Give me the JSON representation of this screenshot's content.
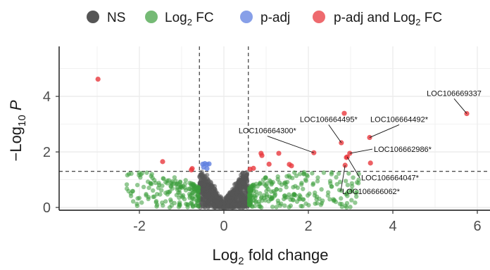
{
  "chart_data": {
    "type": "scatter",
    "title": "",
    "xlabel": "Log2 fold change",
    "ylabel": "-Log10 P",
    "xlim": [
      -3.9,
      6.3
    ],
    "ylim": [
      -0.1,
      5.8
    ],
    "x_ticks": [
      -2,
      0,
      2,
      4,
      6
    ],
    "y_ticks": [
      0,
      2,
      4
    ],
    "x_tick_labels": [
      "-2",
      "0",
      "2",
      "4",
      "6"
    ],
    "y_tick_labels": [
      "0",
      "2",
      "4"
    ],
    "grid": true,
    "legend_position": "top",
    "thresholds": {
      "log2fc": [
        -0.58,
        0.58
      ],
      "neg_log10_p": 1.3
    },
    "legend": [
      {
        "key": "NS",
        "label": "NS",
        "color": "#555555"
      },
      {
        "key": "FC",
        "label": "Log2 FC",
        "color": "#3a9c3a"
      },
      {
        "key": "P",
        "label": "p-adj",
        "color": "#5f7fe0"
      },
      {
        "key": "FCP",
        "label": "p-adj and Log2 FC",
        "color": "#e8383d"
      }
    ],
    "series": [
      {
        "name": "p-adj and Log2 FC",
        "color": "#e8383d",
        "points": [
          [
            -2.98,
            4.62
          ],
          [
            -1.45,
            1.65
          ],
          [
            -0.77,
            1.35
          ],
          [
            -0.75,
            1.4
          ],
          [
            0.62,
            1.38
          ],
          [
            0.7,
            1.41
          ],
          [
            0.88,
            1.95
          ],
          [
            0.9,
            1.87
          ],
          [
            1.07,
            1.56
          ],
          [
            1.3,
            1.95
          ],
          [
            1.55,
            1.55
          ],
          [
            1.6,
            1.5
          ],
          [
            2.13,
            1.97
          ],
          [
            2.78,
            2.33
          ],
          [
            2.85,
            3.39
          ],
          [
            2.87,
            1.52
          ],
          [
            2.9,
            1.8
          ],
          [
            2.92,
            1.82
          ],
          [
            2.98,
            1.95
          ],
          [
            3.47,
            1.6
          ],
          [
            3.45,
            2.52
          ],
          [
            5.75,
            3.38
          ]
        ]
      },
      {
        "name": "p-adj",
        "color": "#5f7fe0",
        "points": [
          [
            -0.5,
            1.56
          ],
          [
            -0.45,
            1.58
          ],
          [
            -0.4,
            1.55
          ],
          [
            -0.35,
            1.57
          ],
          [
            -0.48,
            1.45
          ],
          [
            -0.4,
            1.4
          ]
        ]
      }
    ],
    "labels": [
      {
        "text": "LOC106669337",
        "x": 5.75,
        "y": 3.38,
        "lx": 5.45,
        "ly": 4.02,
        "anchor": "middle"
      },
      {
        "text": "LOC106664495*",
        "x": 2.78,
        "y": 2.33,
        "lx": 2.48,
        "ly": 3.08,
        "anchor": "middle"
      },
      {
        "text": "LOC106664492*",
        "x": 3.45,
        "y": 2.52,
        "lx": 4.15,
        "ly": 3.08,
        "anchor": "middle"
      },
      {
        "text": "LOC106664300*",
        "x": 2.13,
        "y": 1.97,
        "lx": 1.03,
        "ly": 2.67,
        "anchor": "middle"
      },
      {
        "text": "LOC106662986*",
        "x": 2.98,
        "y": 1.95,
        "lx": 3.55,
        "ly": 2.0,
        "anchor": "start"
      },
      {
        "text": "LOC106664047*",
        "x": 2.92,
        "y": 1.82,
        "lx": 3.25,
        "ly": 0.97,
        "anchor": "start"
      },
      {
        "text": "LOC106666062*",
        "x": 2.87,
        "y": 1.52,
        "lx": 2.8,
        "ly": 0.48,
        "anchor": "start"
      }
    ]
  }
}
